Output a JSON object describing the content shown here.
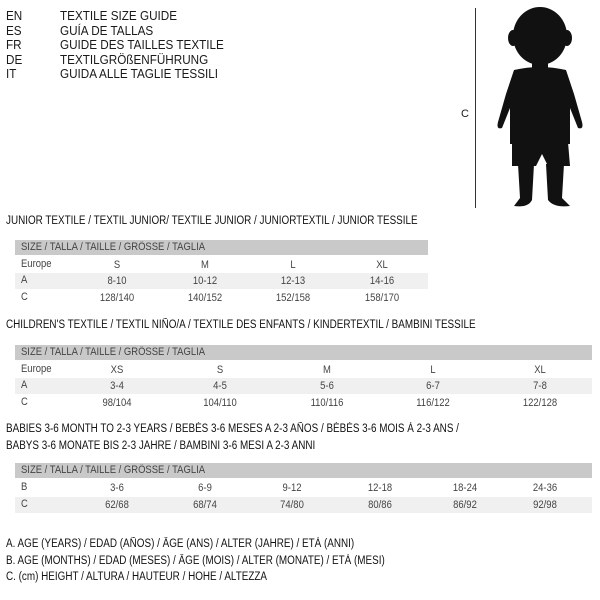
{
  "header": {
    "languages": [
      {
        "code": "EN",
        "text": "TEXTILE SIZE GUIDE"
      },
      {
        "code": "ES",
        "text": "GUÍA DE TALLAS"
      },
      {
        "code": "FR",
        "text": "GUIDE DES TAILLES TEXTILE"
      },
      {
        "code": "DE",
        "text": "TEXTILGRÖßENFÜHRUNG"
      },
      {
        "code": "IT",
        "text": "GUIDA ALLE TAGLIE TESSILI"
      }
    ]
  },
  "figure": {
    "height_label": "C",
    "icon": "child-silhouette"
  },
  "size_header": "SIZE / TALLA / TAILLE / GRÖSSE / TAGLIA",
  "tables": [
    {
      "title": "JUNIOR TEXTILE / TEXTIL JUNIOR/ TEXTILE JUNIOR / JUNIORTEXTIL / JUNIOR TESSILE",
      "rows": [
        {
          "label": "Europe",
          "values": [
            "S",
            "M",
            "L",
            "XL"
          ]
        },
        {
          "label": "A",
          "values": [
            "8-10",
            "10-12",
            "12-13",
            "14-16"
          ]
        },
        {
          "label": "C",
          "values": [
            "128/140",
            "140/152",
            "152/158",
            "158/170"
          ]
        }
      ]
    },
    {
      "title": "CHILDREN'S TEXTILE / TEXTIL NIÑO/A / TEXTILE DES ENFANTS / KINDERTEXTIL / BAMBINI TESSILE",
      "rows": [
        {
          "label": "Europe",
          "values": [
            "XS",
            "S",
            "M",
            "L",
            "XL"
          ]
        },
        {
          "label": "A",
          "values": [
            "3-4",
            "4-5",
            "5-6",
            "6-7",
            "7-8"
          ]
        },
        {
          "label": "C",
          "values": [
            "98/104",
            "104/110",
            "110/116",
            "116/122",
            "122/128"
          ]
        }
      ]
    },
    {
      "title": "BABIES 3-6 MONTH TO 2-3 YEARS / BEBÉS 3-6 MESES A 2-3 AÑOS / BÉBÉS 3-6 MOIS À 2-3 ANS /",
      "title2": "BABYS 3-6 MONATE BIS 2-3 JAHRE / BAMBINI 3-6 MESI A 2-3 ANNI",
      "rows": [
        {
          "label": "B",
          "values": [
            "3-6",
            "6-9",
            "9-12",
            "12-18",
            "18-24",
            "24-36"
          ]
        },
        {
          "label": "C",
          "values": [
            "62/68",
            "68/74",
            "74/80",
            "80/86",
            "86/92",
            "92/98"
          ]
        }
      ]
    }
  ],
  "legend": [
    "A. AGE (YEARS) / EDAD (AÑOS) / ÂGE (ANS) / ALTER (JAHRE) / ETÀ (ANNI)",
    "B. AGE (MONTHS) / EDAD (MESES) / ÂGE (MOIS) / ALTER (MONATE) / ETÀ (MESI)",
    "C. (cm) HEIGHT / ALTURA / HAUTEUR / HÖHE / ALTEZZA"
  ],
  "colors": {
    "header_bar": "#c9c9c9",
    "row_shade": "#f0f0f0",
    "text": "#1a1a1a"
  }
}
